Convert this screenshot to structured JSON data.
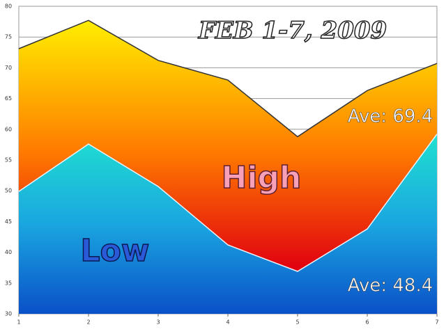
{
  "chart_data": {
    "type": "area",
    "title": "FEB 1-7, 2009",
    "x": [
      1,
      2,
      3,
      4,
      5,
      6,
      7
    ],
    "xlim": [
      1,
      7
    ],
    "xticks": [
      1,
      2,
      3,
      4,
      5,
      6,
      7
    ],
    "ylim": [
      30,
      80
    ],
    "yticks": [
      30,
      35,
      40,
      45,
      50,
      55,
      60,
      65,
      70,
      75,
      80
    ],
    "grid": true,
    "series": [
      {
        "name": "High",
        "color": "#ff7a00",
        "values": [
          73.1,
          77.7,
          71.2,
          68.0,
          58.8,
          66.3,
          70.7
        ],
        "annotation": "Ave: 69.4"
      },
      {
        "name": "Low",
        "color": "#1aa6e0",
        "values": [
          49.9,
          57.6,
          50.7,
          41.2,
          36.9,
          43.8,
          59.2
        ],
        "annotation": "Ave: 48.4"
      }
    ]
  }
}
